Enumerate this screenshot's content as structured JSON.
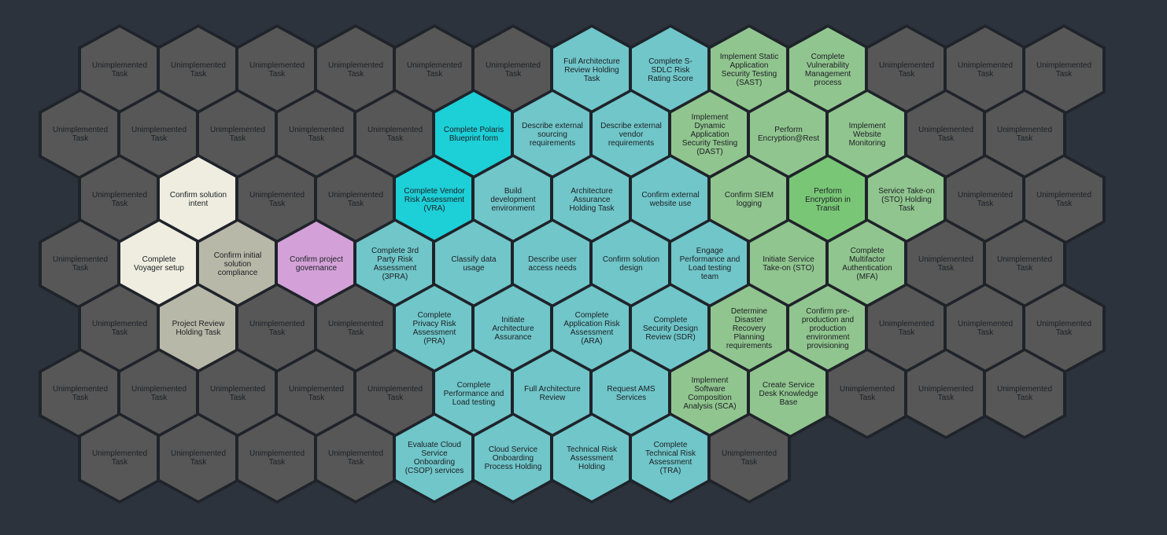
{
  "colors": {
    "background": "#2d333c",
    "border": "#1f232a",
    "unimplemented": "#575757",
    "teal": "#70c6c9",
    "cyan": "#1dcfd7",
    "green": "#91c58f",
    "bright_green": "#79c776",
    "cream": "#eeede0",
    "gray": "#b8b8a8",
    "purple": "#d3a1d7",
    "text": "#1c1f24"
  },
  "rows": [
    [
      {
        "label": "Unimplemented Task",
        "status": "unimplemented"
      },
      {
        "label": "Unimplemented Task",
        "status": "unimplemented"
      },
      {
        "label": "Unimplemented Task",
        "status": "unimplemented"
      },
      {
        "label": "Unimplemented Task",
        "status": "unimplemented"
      },
      {
        "label": "Unimplemented Task",
        "status": "unimplemented"
      },
      {
        "label": "Unimplemented Task",
        "status": "unimplemented"
      },
      {
        "label": "Full Architecture Review Holding Task",
        "status": "teal"
      },
      {
        "label": "Complete S-SDLC Risk Rating Score",
        "status": "teal"
      },
      {
        "label": "Implement Static Application Security Testing (SAST)",
        "status": "green"
      },
      {
        "label": "Complete Vulnerability Management process",
        "status": "green"
      },
      {
        "label": "Unimplemented Task",
        "status": "unimplemented"
      },
      {
        "label": "Unimplemented Task",
        "status": "unimplemented"
      },
      {
        "label": "Unimplemented Task",
        "status": "unimplemented"
      }
    ],
    [
      {
        "label": "Unimplemented Task",
        "status": "unimplemented"
      },
      {
        "label": "Unimplemented Task",
        "status": "unimplemented"
      },
      {
        "label": "Unimplemented Task",
        "status": "unimplemented"
      },
      {
        "label": "Unimplemented Task",
        "status": "unimplemented"
      },
      {
        "label": "Unimplemented Task",
        "status": "unimplemented"
      },
      {
        "label": "Complete Polaris Blueprint form",
        "status": "cyan"
      },
      {
        "label": "Describe external sourcing requirements",
        "status": "teal"
      },
      {
        "label": "Describe external vendor requirements",
        "status": "teal"
      },
      {
        "label": "Implement Dynamic Application Security Testing (DAST)",
        "status": "green"
      },
      {
        "label": "Perform Encryption@Rest",
        "status": "green"
      },
      {
        "label": "Implement Website Monitoring",
        "status": "green"
      },
      {
        "label": "Unimplemented Task",
        "status": "unimplemented"
      },
      {
        "label": "Unimplemented Task",
        "status": "unimplemented"
      }
    ],
    [
      {
        "label": "Unimplemented Task",
        "status": "unimplemented"
      },
      {
        "label": "Confirm solution intent",
        "status": "cream"
      },
      {
        "label": "Unimplemented Task",
        "status": "unimplemented"
      },
      {
        "label": "Unimplemented Task",
        "status": "unimplemented"
      },
      {
        "label": "Complete Vendor Risk Assessment (VRA)",
        "status": "cyan"
      },
      {
        "label": "Build development environment",
        "status": "teal"
      },
      {
        "label": "Architecture Assurance Holding Task",
        "status": "teal"
      },
      {
        "label": "Confirm external website use",
        "status": "teal"
      },
      {
        "label": "Confirm SIEM logging",
        "status": "green"
      },
      {
        "label": "Perform Encryption in Transit",
        "status": "bright_green"
      },
      {
        "label": "Service Take-on (STO) Holding Task",
        "status": "green"
      },
      {
        "label": "Unimplemented Task",
        "status": "unimplemented"
      },
      {
        "label": "Unimplemented Task",
        "status": "unimplemented"
      }
    ],
    [
      {
        "label": "Unimplemented Task",
        "status": "unimplemented"
      },
      {
        "label": "Complete Voyager setup",
        "status": "cream"
      },
      {
        "label": "Confirm initial solution compliance",
        "status": "gray"
      },
      {
        "label": "Confirm project governance",
        "status": "purple"
      },
      {
        "label": "Complete 3rd Party Risk Assessment (3PRA)",
        "status": "teal"
      },
      {
        "label": "Classify data usage",
        "status": "teal"
      },
      {
        "label": "Describe user access needs",
        "status": "teal"
      },
      {
        "label": "Confirm solution design",
        "status": "teal"
      },
      {
        "label": "Engage Performance and Load testing team",
        "status": "teal"
      },
      {
        "label": "Initiate Service Take-on (STO)",
        "status": "green"
      },
      {
        "label": "Complete Multifactor Authentication (MFA)",
        "status": "green"
      },
      {
        "label": "Unimplemented Task",
        "status": "unimplemented"
      },
      {
        "label": "Unimplemented Task",
        "status": "unimplemented"
      }
    ],
    [
      {
        "label": "Unimplemented Task",
        "status": "unimplemented"
      },
      {
        "label": "Project Review Holding Task",
        "status": "gray"
      },
      {
        "label": "Unimplemented Task",
        "status": "unimplemented"
      },
      {
        "label": "Unimplemented Task",
        "status": "unimplemented"
      },
      {
        "label": "Complete Privacy Risk Assessment (PRA)",
        "status": "teal"
      },
      {
        "label": "Initiate Architecture Assurance",
        "status": "teal"
      },
      {
        "label": "Complete Application Risk Assessment (ARA)",
        "status": "teal"
      },
      {
        "label": "Complete Security Design Review (SDR)",
        "status": "teal"
      },
      {
        "label": "Determine Disaster Recovery Planning requirements",
        "status": "green"
      },
      {
        "label": "Confirm pre-production and production environment provisioning",
        "status": "green"
      },
      {
        "label": "Unimplemented Task",
        "status": "unimplemented"
      },
      {
        "label": "Unimplemented Task",
        "status": "unimplemented"
      },
      {
        "label": "Unimplemented Task",
        "status": "unimplemented"
      }
    ],
    [
      {
        "label": "Unimplemented Task",
        "status": "unimplemented"
      },
      {
        "label": "Unimplemented Task",
        "status": "unimplemented"
      },
      {
        "label": "Unimplemented Task",
        "status": "unimplemented"
      },
      {
        "label": "Unimplemented Task",
        "status": "unimplemented"
      },
      {
        "label": "Unimplemented Task",
        "status": "unimplemented"
      },
      {
        "label": "Complete Performance and Load testing",
        "status": "teal"
      },
      {
        "label": "Full Architecture Review",
        "status": "teal"
      },
      {
        "label": "Request AMS Services",
        "status": "teal"
      },
      {
        "label": "Implement Software Composition Analysis (SCA)",
        "status": "green"
      },
      {
        "label": "Create Service Desk Knowledge Base",
        "status": "green"
      },
      {
        "label": "Unimplemented Task",
        "status": "unimplemented"
      },
      {
        "label": "Unimplemented Task",
        "status": "unimplemented"
      },
      {
        "label": "Unimplemented Task",
        "status": "unimplemented"
      }
    ],
    [
      {
        "label": "Unimplemented Task",
        "status": "unimplemented"
      },
      {
        "label": "Unimplemented Task",
        "status": "unimplemented"
      },
      {
        "label": "Unimplemented Task",
        "status": "unimplemented"
      },
      {
        "label": "Unimplemented Task",
        "status": "unimplemented"
      },
      {
        "label": "Evaluate Cloud Service Onboarding (CSOP) services",
        "status": "teal"
      },
      {
        "label": "Cloud Service Onboarding Process Holding",
        "status": "teal"
      },
      {
        "label": "Technical Risk Assessment Holding",
        "status": "teal"
      },
      {
        "label": "Complete Technical Risk Assessment (TRA)",
        "status": "teal"
      },
      {
        "label": "Unimplemented Task",
        "status": "unimplemented"
      }
    ]
  ]
}
